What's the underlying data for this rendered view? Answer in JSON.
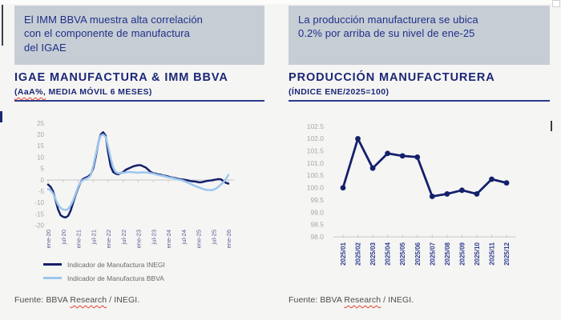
{
  "colors": {
    "navy_text": "#1e2f87",
    "title_navy": "#1c2777",
    "box_bg": "#c6cdd5",
    "line_dark": "#14206b",
    "line_light": "#9dc6ee",
    "axis_gray": "#c9c9c9",
    "y_label_gray": "#a8a8a8",
    "x_label_left": "#5d5d96",
    "x_label_right": "#2e3c90",
    "legend_text": "#6a6a6a",
    "source_text": "#4d4d4d",
    "squiggle_red": "#e0412e"
  },
  "left_panel": {
    "callout_lines": [
      "El IMM BBVA muestra alta correlación",
      "con el componente de manufactura",
      "del IGAE"
    ],
    "title": "IGAE MANUFACTURA & IMM BBVA",
    "subtitle_head": "(AaA%,",
    "subtitle_tail": " MEDIA MÓVIL 6 MESES)",
    "legend": [
      "Indicador de Manufactura INEGI",
      "Indicador de Manufactura BBVA"
    ],
    "source_prefix": "Fuente: BBVA ",
    "source_word": "Research",
    "source_suffix": " / INEGI."
  },
  "right_panel": {
    "callout_lines": [
      "La producción manufacturera se ubica",
      "0.2% por arriba de su nivel de ene-25"
    ],
    "title": "PRODUCCIÓN MANUFACTURERA",
    "subtitle_head": "(ÍNDICE ENE/2025=100)",
    "subtitle_tail": "",
    "source_prefix": "Fuente: BBVA ",
    "source_word": "Research",
    "source_suffix": " / INEGI."
  },
  "chart_data": [
    {
      "type": "line",
      "title": "IGAE MANUFACTURA & IMM BBVA",
      "subtitle": "(AaA%, MEDIA MÓVIL 6 MESES)",
      "x_tick_labels": [
        "ene-20",
        "jul-20",
        "ene-21",
        "jul-21",
        "ene-22",
        "jul-22",
        "ene-23",
        "jul-23",
        "ene-24",
        "jul-24",
        "ene-25",
        "jul-25",
        "ene-26"
      ],
      "x_start": "ene-20",
      "x_frequency": "monthly",
      "ylim": [
        -20,
        25
      ],
      "yticks": [
        "25",
        "20",
        "15",
        "10",
        "5",
        "0",
        "-5",
        "-10",
        "-15",
        "-20"
      ],
      "grid": "zero-axis-only",
      "legend_position": "bottom-left",
      "series": [
        {
          "name": "Indicador de Manufactura INEGI",
          "color_key": "line_dark",
          "values": [
            -2,
            -3,
            -5,
            -9,
            -13,
            -15.5,
            -16.2,
            -16.5,
            -15.8,
            -13.5,
            -10,
            -6.5,
            -3.5,
            -1,
            0.5,
            1,
            1.5,
            2.5,
            5,
            10,
            16,
            20,
            21,
            19.5,
            12,
            6,
            3.5,
            2.8,
            2.5,
            3,
            3.5,
            4.5,
            5,
            5.5,
            6,
            6.3,
            6.5,
            6.5,
            6,
            5.5,
            4.5,
            3.5,
            3,
            2.8,
            2.5,
            2.3,
            2,
            1.8,
            1.5,
            1.2,
            1,
            0.8,
            0.5,
            0.3,
            0.2,
            0,
            -0.2,
            -0.5,
            -0.6,
            -0.7,
            -1,
            -1,
            -0.8,
            -0.5,
            -0.3,
            -0.2,
            0,
            0.2,
            0.4,
            0.3,
            -0.5,
            -1.2,
            -1.6
          ]
        },
        {
          "name": "Indicador de Manufactura BBVA",
          "color_key": "line_light",
          "values": [
            -4,
            -4.5,
            -6,
            -8.5,
            -11,
            -12.3,
            -13,
            -13.2,
            -12.8,
            -11.2,
            -9,
            -6,
            -3,
            -1,
            0,
            0.5,
            1,
            2,
            6,
            11,
            16,
            19.5,
            20,
            19,
            14.5,
            9.5,
            5.5,
            3.5,
            3,
            3,
            3.2,
            3.3,
            3.5,
            3.5,
            3.4,
            3.3,
            3.2,
            3.3,
            3.4,
            3.3,
            3.2,
            3,
            2.8,
            2.5,
            2.2,
            2,
            1.8,
            1.5,
            1.2,
            1,
            0.8,
            0.5,
            0.2,
            0,
            -0.3,
            -0.8,
            -1.3,
            -1.8,
            -2.3,
            -2.8,
            -3.2,
            -3.6,
            -4,
            -4.3,
            -4.4,
            -4.5,
            -4.3,
            -3.8,
            -3,
            -2,
            -1,
            0.5,
            2.2
          ]
        }
      ]
    },
    {
      "type": "line-markers",
      "title": "PRODUCCIÓN MANUFACTURERA",
      "subtitle": "(ÍNDICE ENE/2025=100)",
      "categories": [
        "2025/01",
        "2025/02",
        "2025/03",
        "2025/04",
        "2025/05",
        "2025/06",
        "2025/07",
        "2025/08",
        "2025/09",
        "2025/10",
        "2025/11",
        "2025/12"
      ],
      "ylim": [
        98.0,
        102.5
      ],
      "yticks": [
        "102.5",
        "102.0",
        "101.5",
        "101.0",
        "100.5",
        "100.0",
        "99.5",
        "99.0",
        "98.5",
        "98.0"
      ],
      "grid": "baseline-only",
      "series": [
        {
          "color_key": "line_dark",
          "values": [
            100.0,
            102.0,
            100.8,
            101.4,
            101.3,
            101.25,
            99.65,
            99.75,
            99.9,
            99.75,
            100.35,
            100.2
          ]
        }
      ]
    }
  ]
}
